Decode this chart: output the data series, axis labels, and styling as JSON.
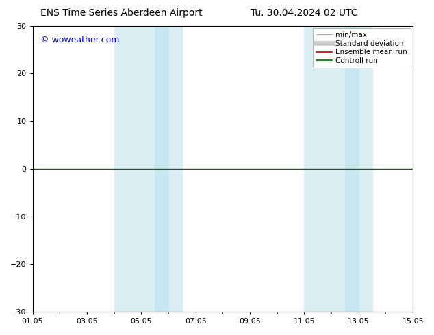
{
  "title": "ENS Time Series Aberdeen Airport",
  "title2": "Tu. 30.04.2024 02 UTC",
  "ylim": [
    -30,
    30
  ],
  "yticks": [
    -30,
    -20,
    -10,
    0,
    10,
    20,
    30
  ],
  "xtick_labels": [
    "01.05",
    "03.05",
    "05.05",
    "07.05",
    "09.05",
    "11.05",
    "13.05",
    "15.05"
  ],
  "xtick_positions": [
    0,
    2,
    4,
    6,
    8,
    10,
    12,
    14
  ],
  "xlim": [
    0,
    14
  ],
  "shaded_regions": [
    {
      "xstart": 3.0,
      "xend": 4.5,
      "color": "#daeef3"
    },
    {
      "xstart": 4.5,
      "xend": 5.5,
      "color": "#daeef3"
    },
    {
      "xstart": 10.0,
      "xend": 11.5,
      "color": "#daeef3"
    },
    {
      "xstart": 11.5,
      "xend": 12.5,
      "color": "#daeef3"
    }
  ],
  "hline_y": 0,
  "hline_color": "#2f4f2f",
  "watermark": "© woweather.com",
  "watermark_color": "#0000cc",
  "background_color": "#ffffff",
  "plot_bg_color": "#ffffff",
  "legend_items": [
    {
      "label": "min/max",
      "color": "#aaaaaa",
      "lw": 1.0,
      "type": "minmax"
    },
    {
      "label": "Standard deviation",
      "color": "#cccccc",
      "lw": 5.0,
      "type": "line"
    },
    {
      "label": "Ensemble mean run",
      "color": "#cc0000",
      "lw": 1.2,
      "type": "line"
    },
    {
      "label": "Controll run",
      "color": "#006400",
      "lw": 1.2,
      "type": "line"
    }
  ],
  "title_fontsize": 10,
  "tick_fontsize": 8,
  "legend_fontsize": 7.5,
  "watermark_fontsize": 9
}
